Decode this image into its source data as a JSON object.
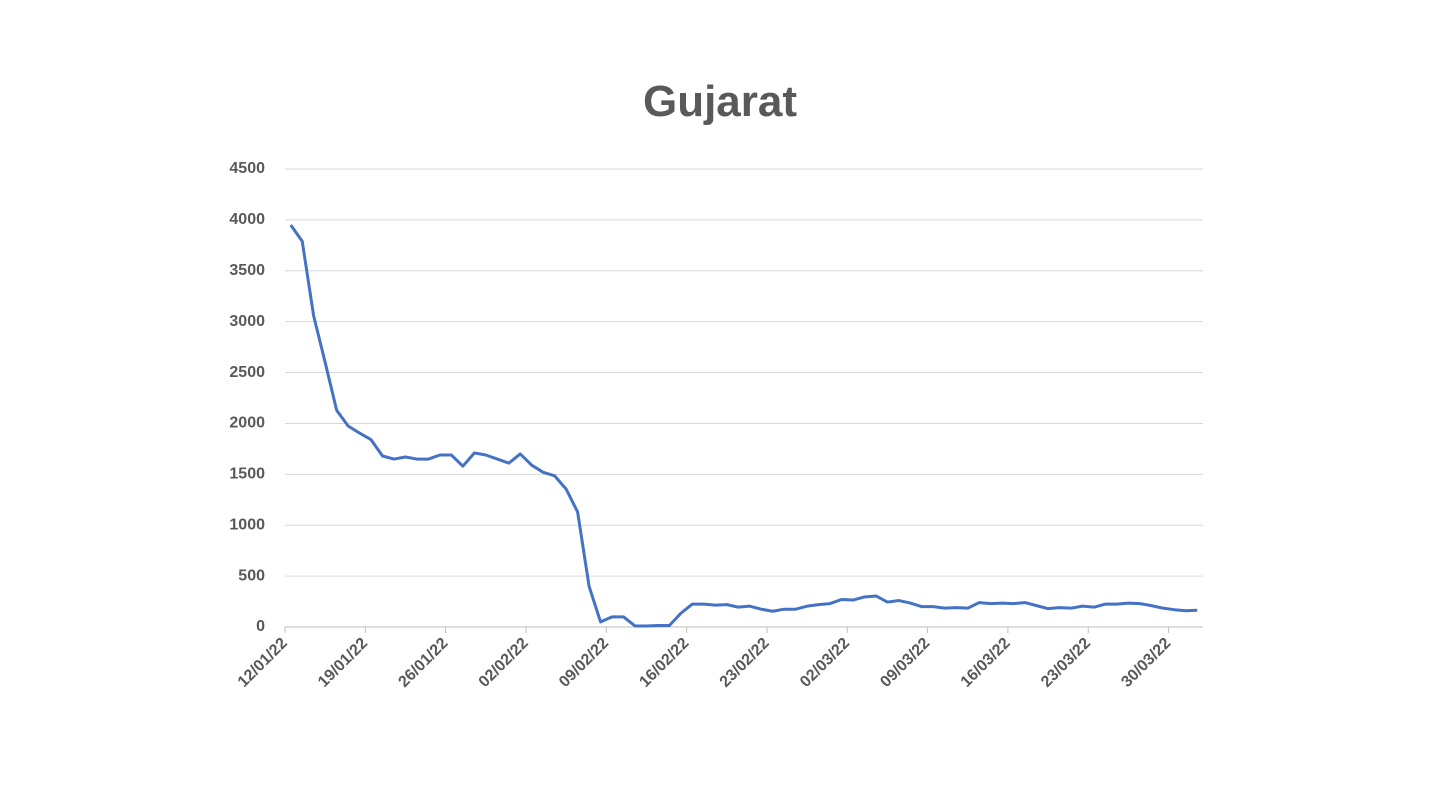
{
  "chart_data": {
    "type": "line",
    "title": "Gujarat",
    "categories": [
      "12/01/22",
      null,
      null,
      null,
      null,
      null,
      null,
      "19/01/22",
      null,
      null,
      null,
      null,
      null,
      null,
      "26/01/22",
      null,
      null,
      null,
      null,
      null,
      null,
      "02/02/22",
      null,
      null,
      null,
      null,
      null,
      null,
      "09/02/22",
      null,
      null,
      null,
      null,
      null,
      null,
      "16/02/22",
      null,
      null,
      null,
      null,
      null,
      null,
      "23/02/22",
      null,
      null,
      null,
      null,
      null,
      null,
      "02/03/22",
      null,
      null,
      null,
      null,
      null,
      null,
      "09/03/22",
      null,
      null,
      null,
      null,
      null,
      null,
      "16/03/22",
      null,
      null,
      null,
      null,
      null,
      null,
      "23/03/22",
      null,
      null,
      null,
      null,
      null,
      null,
      "30/03/22",
      null,
      null
    ],
    "series": [
      {
        "name": "Gujarat",
        "color": "#4472c4",
        "values": [
          3950,
          3790,
          3055,
          2600,
          2130,
          1975,
          1905,
          1840,
          1680,
          1650,
          1670,
          1650,
          1650,
          1690,
          1690,
          1580,
          1710,
          1690,
          1650,
          1610,
          1700,
          1590,
          1520,
          1485,
          1355,
          1130,
          400,
          50,
          100,
          100,
          10,
          10,
          15,
          15,
          135,
          225,
          225,
          215,
          220,
          195,
          205,
          175,
          155,
          175,
          175,
          205,
          220,
          230,
          270,
          265,
          295,
          305,
          245,
          260,
          235,
          200,
          200,
          185,
          190,
          185,
          240,
          230,
          235,
          230,
          240,
          210,
          180,
          190,
          185,
          205,
          195,
          225,
          225,
          235,
          230,
          210,
          185,
          170,
          160,
          165
        ]
      }
    ],
    "ylim": [
      0,
      4500
    ],
    "yticks": [
      0,
      500,
      1000,
      1500,
      2000,
      2500,
      3000,
      3500,
      4000,
      4500
    ],
    "grid": true
  }
}
